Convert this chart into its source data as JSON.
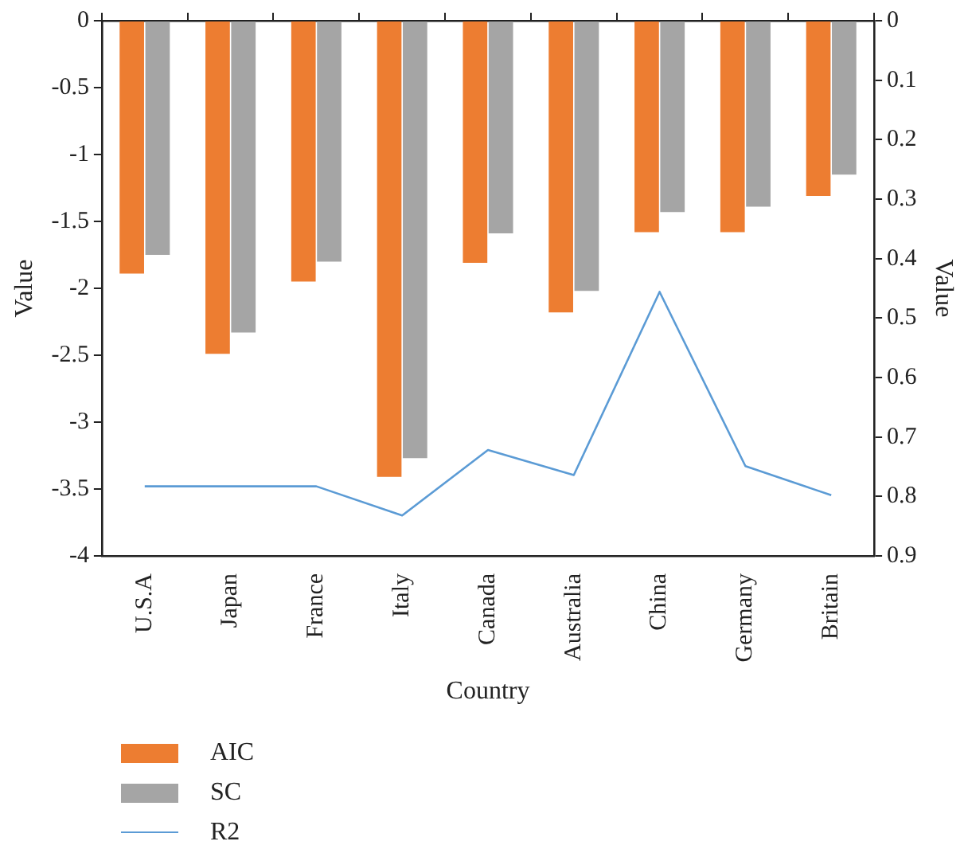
{
  "chart_data": {
    "type": "bar",
    "xlabel": "Country",
    "ylabel": "Value",
    "y2label": "Value",
    "categories": [
      "U.S.A",
      "Japan",
      "France",
      "Italy",
      "Canada",
      "Australia",
      "China",
      "Germany",
      "Britain"
    ],
    "series": [
      {
        "name": "AIC",
        "color": "#ed7d31",
        "values": [
          -1.89,
          -2.49,
          -1.95,
          -3.41,
          -1.81,
          -2.18,
          -1.58,
          -1.58,
          -1.31
        ]
      },
      {
        "name": "SC",
        "color": "#a5a5a5",
        "values": [
          -1.75,
          -2.33,
          -1.8,
          -3.27,
          -1.59,
          -2.02,
          -1.43,
          -1.39,
          -1.15
        ]
      },
      {
        "name": "R2",
        "type": "line",
        "axis": "y2",
        "color": "#5b9bd5",
        "values": [
          0.783,
          0.783,
          0.783,
          0.832,
          0.722,
          0.764,
          0.456,
          0.749,
          0.798
        ]
      }
    ],
    "ylim": [
      -4,
      0
    ],
    "yticks": [
      -4,
      -3.5,
      -3,
      -2.5,
      -2,
      -1.5,
      -1,
      -0.5,
      0
    ],
    "y2lim": [
      0.9,
      0
    ],
    "y2ticks": [
      0,
      0.1,
      0.2,
      0.3,
      0.4,
      0.5,
      0.6,
      0.7,
      0.8,
      0.9
    ],
    "grid": false,
    "legend": "bottom left",
    "marker": "none"
  }
}
